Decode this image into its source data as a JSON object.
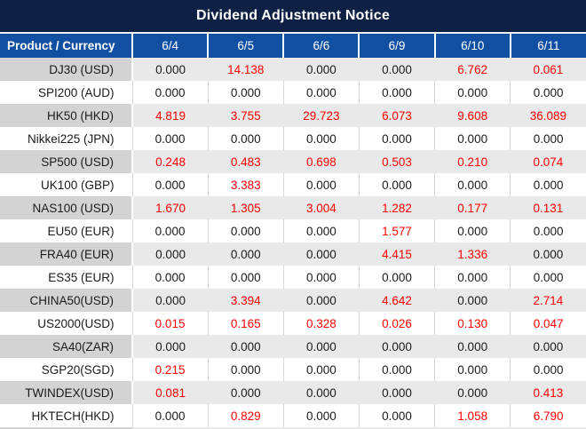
{
  "title": "Dividend Adjustment Notice",
  "colors": {
    "title_bar_bg": "#0e2044",
    "header_bg": "#114fa2",
    "header_text": "#ffffff",
    "red_value": "#fe0000",
    "black_value": "#1a1a1a",
    "stripe_product_bg": "#d3d3d3",
    "stripe_value_bg": "#e9e9e9",
    "white_row_grid": "#d8d8d8"
  },
  "table": {
    "product_header": "Product / Currency",
    "date_headers": [
      "6/4",
      "6/5",
      "6/6",
      "6/9",
      "6/10",
      "6/11"
    ],
    "rows": [
      {
        "product": "DJ30 (USD)",
        "values": [
          "0.000",
          "14.138",
          "0.000",
          "0.000",
          "6.762",
          "0.061"
        ],
        "red": [
          false,
          true,
          false,
          false,
          true,
          true
        ]
      },
      {
        "product": "SPI200 (AUD)",
        "values": [
          "0.000",
          "0.000",
          "0.000",
          "0.000",
          "0.000",
          "0.000"
        ],
        "red": [
          false,
          false,
          false,
          false,
          false,
          false
        ]
      },
      {
        "product": "HK50 (HKD)",
        "values": [
          "4.819",
          "3.755",
          "29.723",
          "6.073",
          "9.608",
          "36.089"
        ],
        "red": [
          true,
          true,
          true,
          true,
          true,
          true
        ]
      },
      {
        "product": "Nikkei225 (JPN)",
        "values": [
          "0.000",
          "0.000",
          "0.000",
          "0.000",
          "0.000",
          "0.000"
        ],
        "red": [
          false,
          false,
          false,
          false,
          false,
          false
        ]
      },
      {
        "product": "SP500 (USD)",
        "values": [
          "0.248",
          "0.483",
          "0.698",
          "0.503",
          "0.210",
          "0.074"
        ],
        "red": [
          true,
          true,
          true,
          true,
          true,
          true
        ]
      },
      {
        "product": "UK100 (GBP)",
        "values": [
          "0.000",
          "3.383",
          "0.000",
          "0.000",
          "0.000",
          "0.000"
        ],
        "red": [
          false,
          true,
          false,
          false,
          false,
          false
        ]
      },
      {
        "product": "NAS100 (USD)",
        "values": [
          "1.670",
          "1.305",
          "3.004",
          "1.282",
          "0.177",
          "0.131"
        ],
        "red": [
          true,
          true,
          true,
          true,
          true,
          true
        ]
      },
      {
        "product": "EU50 (EUR)",
        "values": [
          "0.000",
          "0.000",
          "0.000",
          "1.577",
          "0.000",
          "0.000"
        ],
        "red": [
          false,
          false,
          false,
          true,
          false,
          false
        ]
      },
      {
        "product": "FRA40 (EUR)",
        "values": [
          "0.000",
          "0.000",
          "0.000",
          "4.415",
          "1.336",
          "0.000"
        ],
        "red": [
          false,
          false,
          false,
          true,
          true,
          false
        ]
      },
      {
        "product": "ES35 (EUR)",
        "values": [
          "0.000",
          "0.000",
          "0.000",
          "0.000",
          "0.000",
          "0.000"
        ],
        "red": [
          false,
          false,
          false,
          false,
          false,
          false
        ]
      },
      {
        "product": "CHINA50(USD)",
        "values": [
          "0.000",
          "3.394",
          "0.000",
          "4.642",
          "0.000",
          "2.714"
        ],
        "red": [
          false,
          true,
          false,
          true,
          false,
          true
        ]
      },
      {
        "product": "US2000(USD)",
        "values": [
          "0.015",
          "0.165",
          "0.328",
          "0.026",
          "0.130",
          "0.047"
        ],
        "red": [
          true,
          true,
          true,
          true,
          true,
          true
        ]
      },
      {
        "product": "SA40(ZAR)",
        "values": [
          "0.000",
          "0.000",
          "0.000",
          "0.000",
          "0.000",
          "0.000"
        ],
        "red": [
          false,
          false,
          false,
          false,
          false,
          false
        ]
      },
      {
        "product": "SGP20(SGD)",
        "values": [
          "0.215",
          "0.000",
          "0.000",
          "0.000",
          "0.000",
          "0.000"
        ],
        "red": [
          true,
          false,
          false,
          false,
          false,
          false
        ]
      },
      {
        "product": "TWINDEX(USD)",
        "values": [
          "0.081",
          "0.000",
          "0.000",
          "0.000",
          "0.000",
          "0.413"
        ],
        "red": [
          true,
          false,
          false,
          false,
          false,
          true
        ]
      },
      {
        "product": "HKTECH(HKD)",
        "values": [
          "0.000",
          "0.829",
          "0.000",
          "0.000",
          "1.058",
          "6.790"
        ],
        "red": [
          false,
          true,
          false,
          false,
          true,
          true
        ]
      }
    ]
  }
}
